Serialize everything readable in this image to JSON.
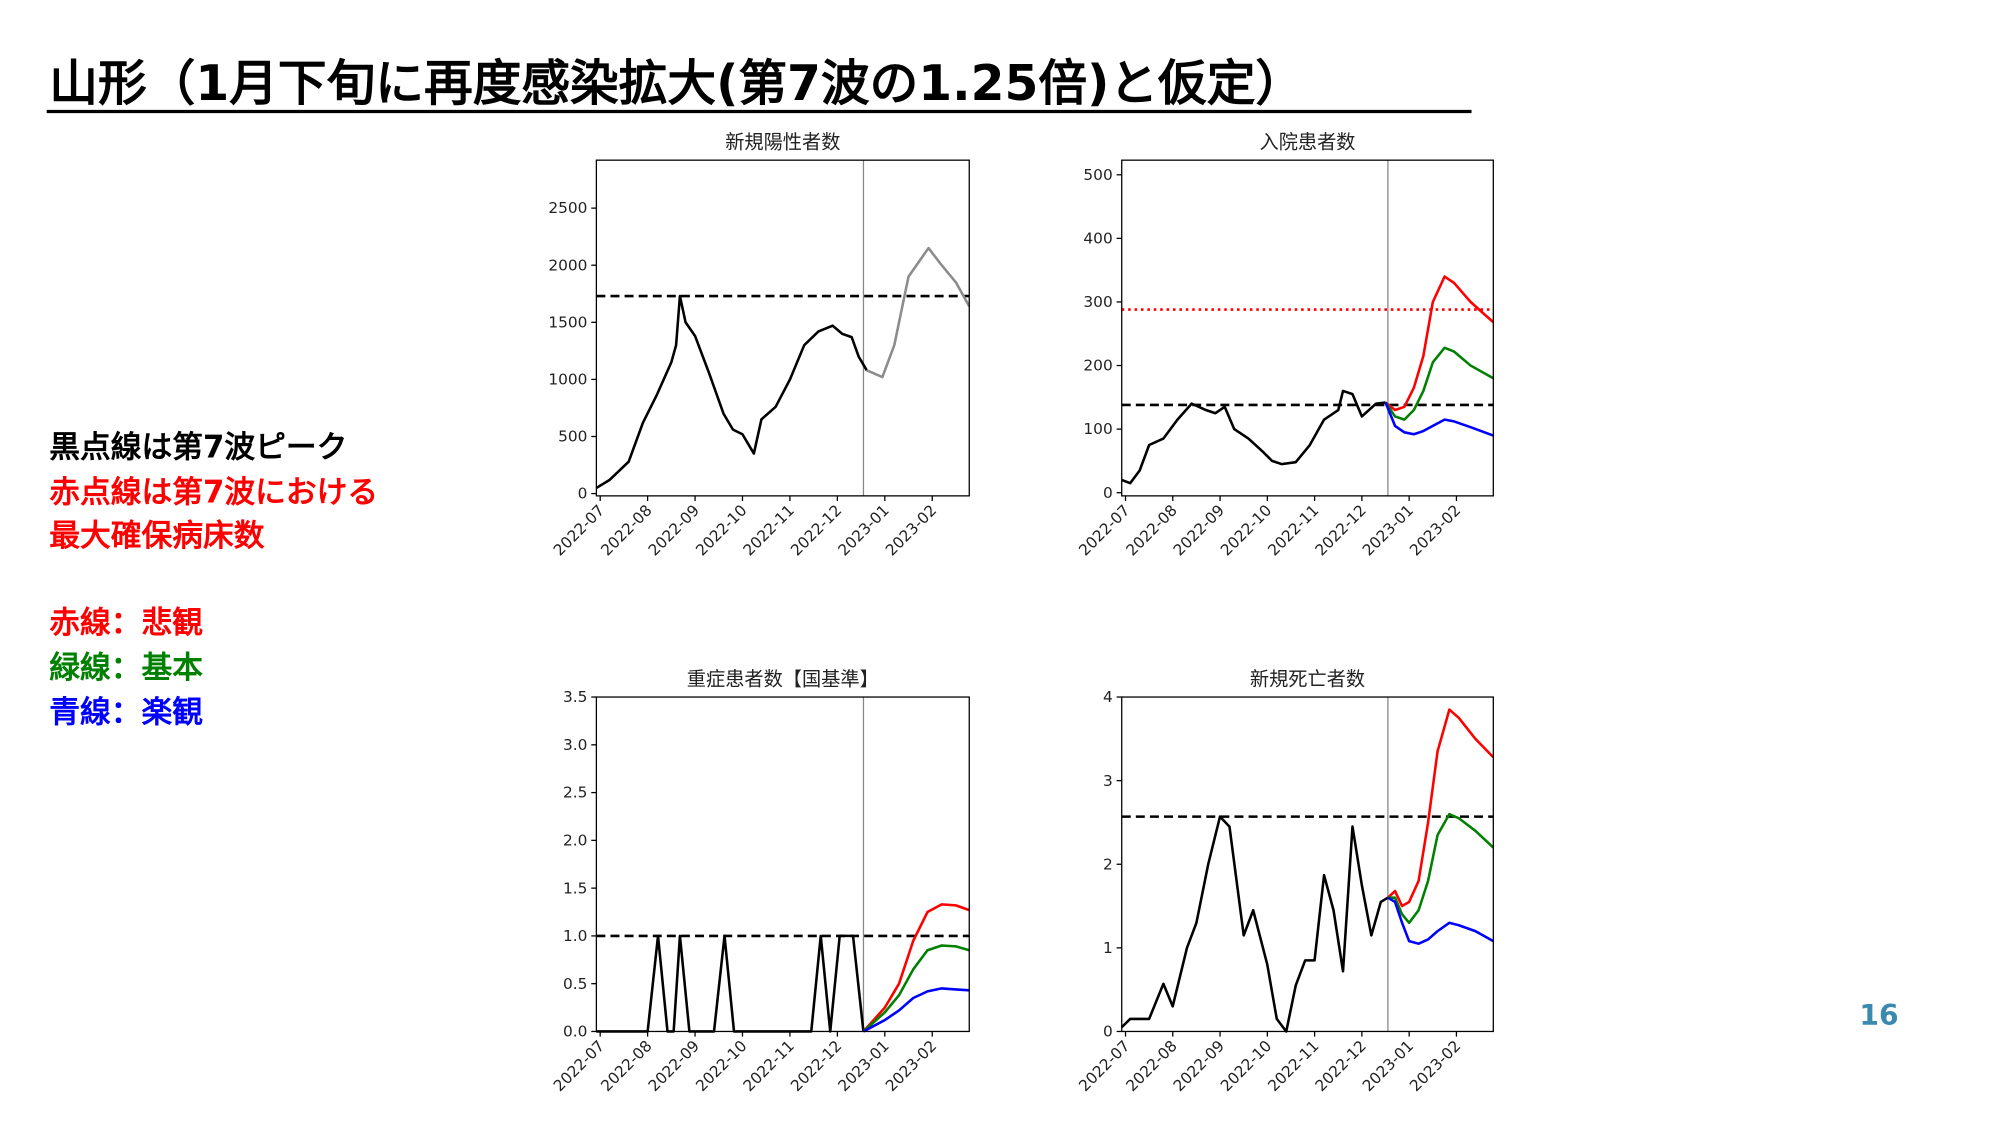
{
  "slide": {
    "title": "山形（1月下旬に再度感染拡大(第7波の1.25倍)と仮定）",
    "notes": [
      {
        "text": "黒点線は第7波ピーク",
        "color": "#000000"
      },
      {
        "text": "赤点線は第7波における",
        "color": "#ff0000"
      },
      {
        "text": "最大確保病床数",
        "color": "#ff0000"
      },
      {
        "text": "赤線：悲観",
        "color": "#ff0000"
      },
      {
        "text": "緑線：基本",
        "color": "#008000"
      },
      {
        "text": "青線：楽観",
        "color": "#0000ff"
      }
    ],
    "page_number": "16"
  },
  "chart_data": [
    {
      "type": "line",
      "title": "新規陽性者数",
      "xlim": [
        -0.08,
        7.78
      ],
      "xticks": [
        {
          "value": 0,
          "label": "2022-07"
        },
        {
          "value": 1,
          "label": "2022-08"
        },
        {
          "value": 2,
          "label": "2022-09"
        },
        {
          "value": 3,
          "label": "2022-10"
        },
        {
          "value": 4,
          "label": "2022-11"
        },
        {
          "value": 5,
          "label": "2022-12"
        },
        {
          "value": 6,
          "label": "2023-01"
        },
        {
          "value": 7,
          "label": "2023-02"
        }
      ],
      "ylim": [
        -20,
        2920
      ],
      "yticks": [
        0,
        500,
        1000,
        1500,
        2000,
        2500
      ],
      "vline": 5.55,
      "hlines": [
        {
          "value": 1730,
          "color": "#000000",
          "style": "dashed"
        }
      ],
      "series": [
        {
          "color": "#000000",
          "x": [
            -0.08,
            0.2,
            0.6,
            0.9,
            1.2,
            1.5,
            1.6,
            1.68,
            1.8,
            2.0,
            2.3,
            2.6,
            2.8,
            3.0,
            3.24,
            3.4,
            3.7,
            4.0,
            4.3,
            4.6,
            4.9,
            5.1,
            5.3,
            5.45,
            5.62
          ],
          "values": [
            50,
            120,
            280,
            620,
            870,
            1150,
            1300,
            1730,
            1500,
            1380,
            1050,
            700,
            560,
            520,
            350,
            650,
            760,
            1000,
            1300,
            1420,
            1470,
            1400,
            1370,
            1200,
            1080
          ]
        },
        {
          "color": "#8c8c8c",
          "x": [
            5.62,
            5.95,
            6.2,
            6.5,
            6.92,
            7.2,
            7.5,
            7.78
          ],
          "values": [
            1080,
            1020,
            1300,
            1900,
            2150,
            2000,
            1850,
            1640
          ]
        }
      ]
    },
    {
      "type": "line",
      "title": "入院患者数",
      "xlim": [
        -0.08,
        7.78
      ],
      "xticks": [
        {
          "value": 0,
          "label": "2022-07"
        },
        {
          "value": 1,
          "label": "2022-08"
        },
        {
          "value": 2,
          "label": "2022-09"
        },
        {
          "value": 3,
          "label": "2022-10"
        },
        {
          "value": 4,
          "label": "2022-11"
        },
        {
          "value": 5,
          "label": "2022-12"
        },
        {
          "value": 6,
          "label": "2023-01"
        },
        {
          "value": 7,
          "label": "2023-02"
        }
      ],
      "ylim": [
        -5,
        523
      ],
      "yticks": [
        0,
        100,
        200,
        300,
        400,
        500
      ],
      "vline": 5.55,
      "hlines": [
        {
          "value": 138,
          "color": "#000000",
          "style": "dashed"
        },
        {
          "value": 288,
          "color": "#ff0000",
          "style": "dotted"
        }
      ],
      "series": [
        {
          "color": "#000000",
          "x": [
            -0.08,
            0.1,
            0.3,
            0.5,
            0.8,
            1.1,
            1.4,
            1.7,
            1.9,
            2.1,
            2.3,
            2.6,
            2.9,
            3.1,
            3.3,
            3.6,
            3.9,
            4.2,
            4.5,
            4.6,
            4.8,
            5.0,
            5.3,
            5.5
          ],
          "values": [
            20,
            15,
            35,
            75,
            85,
            115,
            140,
            130,
            125,
            135,
            100,
            85,
            65,
            50,
            45,
            48,
            75,
            115,
            130,
            160,
            155,
            120,
            140,
            142
          ]
        },
        {
          "color": "#ff0000",
          "x": [
            5.5,
            5.7,
            5.9,
            6.1,
            6.3,
            6.5,
            6.75,
            6.95,
            7.3,
            7.78
          ],
          "values": [
            142,
            130,
            135,
            165,
            215,
            300,
            340,
            330,
            300,
            268
          ]
        },
        {
          "color": "#008000",
          "x": [
            5.5,
            5.7,
            5.9,
            6.1,
            6.3,
            6.5,
            6.75,
            6.95,
            7.3,
            7.78
          ],
          "values": [
            142,
            120,
            115,
            130,
            160,
            205,
            228,
            222,
            200,
            180
          ]
        },
        {
          "color": "#0000ff",
          "x": [
            5.5,
            5.7,
            5.9,
            6.1,
            6.3,
            6.5,
            6.75,
            6.95,
            7.3,
            7.78
          ],
          "values": [
            142,
            105,
            95,
            92,
            97,
            105,
            115,
            112,
            103,
            90
          ]
        }
      ]
    },
    {
      "type": "line",
      "title": "重症患者数【国基準】",
      "xlim": [
        -0.08,
        7.78
      ],
      "xticks": [
        {
          "value": 0,
          "label": "2022-07"
        },
        {
          "value": 1,
          "label": "2022-08"
        },
        {
          "value": 2,
          "label": "2022-09"
        },
        {
          "value": 3,
          "label": "2022-10"
        },
        {
          "value": 4,
          "label": "2022-11"
        },
        {
          "value": 5,
          "label": "2022-12"
        },
        {
          "value": 6,
          "label": "2023-01"
        },
        {
          "value": 7,
          "label": "2023-02"
        }
      ],
      "ylim": [
        0,
        3.5
      ],
      "yticks": [
        {
          "value": 0,
          "label": "0.0"
        },
        0.5,
        {
          "value": 1,
          "label": "1.0"
        },
        1.5,
        {
          "value": 2,
          "label": "2.0"
        },
        2.5,
        {
          "value": 3,
          "label": "3.0"
        },
        3.5
      ],
      "vline": 5.55,
      "hlines": [
        {
          "value": 1,
          "color": "#000000",
          "style": "dashed"
        }
      ],
      "series": [
        {
          "color": "#000000",
          "x": [
            -0.08,
            1.0,
            1.22,
            1.42,
            1.55,
            1.68,
            1.88,
            2.4,
            2.62,
            2.82,
            4.45,
            4.65,
            4.85,
            5.05,
            5.33,
            5.55
          ],
          "values": [
            0,
            0,
            1,
            0,
            0,
            1,
            0,
            0,
            1,
            0,
            0,
            1,
            0,
            1,
            1,
            0
          ]
        },
        {
          "color": "#ff0000",
          "x": [
            5.55,
            6.0,
            6.3,
            6.6,
            6.9,
            7.2,
            7.5,
            7.78
          ],
          "values": [
            0,
            0.25,
            0.5,
            0.95,
            1.25,
            1.33,
            1.32,
            1.27
          ]
        },
        {
          "color": "#008000",
          "x": [
            5.55,
            6.0,
            6.3,
            6.6,
            6.9,
            7.2,
            7.5,
            7.78
          ],
          "values": [
            0,
            0.2,
            0.38,
            0.65,
            0.85,
            0.9,
            0.89,
            0.85
          ]
        },
        {
          "color": "#0000ff",
          "x": [
            5.55,
            6.0,
            6.3,
            6.6,
            6.9,
            7.2,
            7.5,
            7.78
          ],
          "values": [
            0,
            0.12,
            0.22,
            0.35,
            0.42,
            0.45,
            0.44,
            0.43
          ]
        }
      ]
    },
    {
      "type": "line",
      "title": "新規死亡者数",
      "xlim": [
        -0.08,
        7.78
      ],
      "xticks": [
        {
          "value": 0,
          "label": "2022-07"
        },
        {
          "value": 1,
          "label": "2022-08"
        },
        {
          "value": 2,
          "label": "2022-09"
        },
        {
          "value": 3,
          "label": "2022-10"
        },
        {
          "value": 4,
          "label": "2022-11"
        },
        {
          "value": 5,
          "label": "2022-12"
        },
        {
          "value": 6,
          "label": "2023-01"
        },
        {
          "value": 7,
          "label": "2023-02"
        }
      ],
      "ylim": [
        0,
        4
      ],
      "yticks": [
        0,
        1,
        2,
        3,
        4
      ],
      "vline": 5.55,
      "hlines": [
        {
          "value": 2.57,
          "color": "#000000",
          "style": "dashed"
        }
      ],
      "series": [
        {
          "color": "#000000",
          "x": [
            -0.08,
            0.1,
            0.5,
            0.8,
            1.0,
            1.3,
            1.5,
            1.75,
            2.0,
            2.2,
            2.5,
            2.7,
            3.0,
            3.2,
            3.4,
            3.6,
            3.8,
            4.0,
            4.2,
            4.4,
            4.6,
            4.8,
            5.0,
            5.2,
            5.4,
            5.55
          ],
          "values": [
            0.05,
            0.15,
            0.15,
            0.57,
            0.3,
            1.0,
            1.3,
            2.0,
            2.57,
            2.45,
            1.15,
            1.45,
            0.8,
            0.15,
            0.0,
            0.55,
            0.85,
            0.85,
            1.87,
            1.45,
            0.72,
            2.45,
            1.75,
            1.15,
            1.55,
            1.6
          ]
        },
        {
          "color": "#ff0000",
          "x": [
            5.55,
            5.7,
            5.85,
            6.0,
            6.2,
            6.4,
            6.6,
            6.85,
            7.05,
            7.4,
            7.78
          ],
          "values": [
            1.6,
            1.68,
            1.5,
            1.55,
            1.8,
            2.5,
            3.35,
            3.85,
            3.75,
            3.5,
            3.28
          ]
        },
        {
          "color": "#008000",
          "x": [
            5.55,
            5.7,
            5.85,
            6.0,
            6.2,
            6.4,
            6.6,
            6.85,
            7.05,
            7.4,
            7.78
          ],
          "values": [
            1.6,
            1.6,
            1.4,
            1.3,
            1.45,
            1.8,
            2.35,
            2.6,
            2.55,
            2.4,
            2.2
          ]
        },
        {
          "color": "#0000ff",
          "x": [
            5.55,
            5.7,
            5.85,
            6.0,
            6.2,
            6.4,
            6.6,
            6.85,
            7.05,
            7.4,
            7.78
          ],
          "values": [
            1.6,
            1.55,
            1.3,
            1.08,
            1.05,
            1.1,
            1.2,
            1.3,
            1.27,
            1.2,
            1.08
          ]
        }
      ]
    }
  ]
}
